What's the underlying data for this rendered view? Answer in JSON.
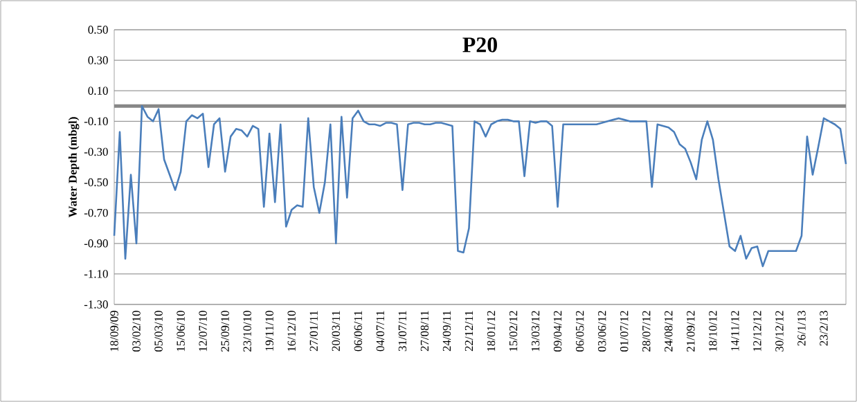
{
  "chart_data": {
    "type": "line",
    "title": "P20",
    "ylabel": "Water Depth (mbgl)",
    "categories": [
      "18/09/09",
      null,
      null,
      null,
      "03/02/10",
      null,
      null,
      null,
      "05/03/10",
      null,
      null,
      null,
      "15/06/10",
      null,
      null,
      null,
      "12/07/10",
      null,
      null,
      null,
      "25/09/10",
      null,
      null,
      null,
      "23/10/10",
      null,
      null,
      null,
      "19/11/10",
      null,
      null,
      null,
      "16/12/10",
      null,
      null,
      null,
      "27/01/11",
      null,
      null,
      null,
      "20/03/11",
      null,
      null,
      null,
      "06/06/11",
      null,
      null,
      null,
      "04/07/11",
      null,
      null,
      null,
      "31/07/11",
      null,
      null,
      null,
      "27/08/11",
      null,
      null,
      null,
      "24/09/11",
      null,
      null,
      null,
      "22/12/11",
      null,
      null,
      null,
      "18/01/12",
      null,
      null,
      null,
      "15/02/12",
      null,
      null,
      null,
      "13/03/12",
      null,
      null,
      null,
      "09/04/12",
      null,
      null,
      null,
      "06/05/12",
      null,
      null,
      null,
      "03/06/12",
      null,
      null,
      null,
      "01/07/12",
      null,
      null,
      null,
      "28/07/12",
      null,
      null,
      null,
      "24/08/12",
      null,
      null,
      null,
      "21/09/12",
      null,
      null,
      null,
      "18/10/12",
      null,
      null,
      null,
      "14/11/12",
      null,
      null,
      null,
      "12/12/12",
      null,
      null,
      null,
      "30/12/12",
      null,
      null,
      null,
      "26/1/13",
      null,
      null,
      null,
      "23/2/13",
      null,
      null,
      null,
      null
    ],
    "ylim": [
      -1.3,
      0.5
    ],
    "yticks": [
      {
        "value": 0.5,
        "label": "0.50"
      },
      {
        "value": 0.3,
        "label": "0.30"
      },
      {
        "value": 0.1,
        "label": "0.10"
      },
      {
        "value": -0.1,
        "label": "-0.10"
      },
      {
        "value": -0.3,
        "label": "-0.30"
      },
      {
        "value": -0.5,
        "label": "-0.50"
      },
      {
        "value": -0.7,
        "label": "-0.70"
      },
      {
        "value": -0.9,
        "label": "-0.90"
      },
      {
        "value": -1.1,
        "label": "-1.10"
      },
      {
        "value": -1.3,
        "label": "-1.30"
      }
    ],
    "grid": "y",
    "marker": "none",
    "line_style": "solid",
    "ref_lines": [
      {
        "axis": "y",
        "value": 0,
        "color": "#878787"
      }
    ],
    "series": [
      {
        "color": "#4a7ebb",
        "values": [
          -0.85,
          -0.17,
          -1.0,
          -0.45,
          -0.9,
          0.0,
          -0.07,
          -0.1,
          -0.02,
          -0.35,
          -0.45,
          -0.55,
          -0.43,
          -0.1,
          -0.06,
          -0.08,
          -0.05,
          -0.4,
          -0.12,
          -0.08,
          -0.43,
          -0.2,
          -0.15,
          -0.16,
          -0.2,
          -0.13,
          -0.15,
          -0.66,
          -0.18,
          -0.63,
          -0.12,
          -0.79,
          -0.68,
          -0.65,
          -0.66,
          -0.08,
          -0.53,
          -0.7,
          -0.5,
          -0.12,
          -0.9,
          -0.07,
          -0.6,
          -0.08,
          -0.03,
          -0.1,
          -0.12,
          -0.12,
          -0.13,
          -0.11,
          -0.11,
          -0.12,
          -0.55,
          -0.12,
          -0.11,
          -0.11,
          -0.12,
          -0.12,
          -0.11,
          -0.11,
          -0.12,
          -0.13,
          -0.95,
          -0.96,
          -0.8,
          -0.1,
          -0.12,
          -0.2,
          -0.12,
          -0.1,
          -0.09,
          -0.09,
          -0.1,
          -0.1,
          -0.46,
          -0.1,
          -0.11,
          -0.1,
          -0.1,
          -0.13,
          -0.66,
          -0.12,
          -0.12,
          -0.12,
          -0.12,
          -0.12,
          -0.12,
          -0.12,
          -0.11,
          -0.1,
          -0.09,
          -0.08,
          -0.09,
          -0.1,
          -0.1,
          -0.1,
          -0.1,
          -0.53,
          -0.12,
          -0.13,
          -0.14,
          -0.17,
          -0.25,
          -0.28,
          -0.37,
          -0.48,
          -0.22,
          -0.1,
          -0.22,
          -0.48,
          -0.7,
          -0.92,
          -0.95,
          -0.85,
          -1.0,
          -0.93,
          -0.92,
          -1.05,
          -0.95,
          -0.95,
          -0.95,
          -0.95,
          -0.95,
          -0.95,
          -0.85,
          -0.2,
          -0.45,
          -0.27,
          -0.08,
          -0.1,
          -0.12,
          -0.15,
          -0.38
        ]
      }
    ]
  }
}
